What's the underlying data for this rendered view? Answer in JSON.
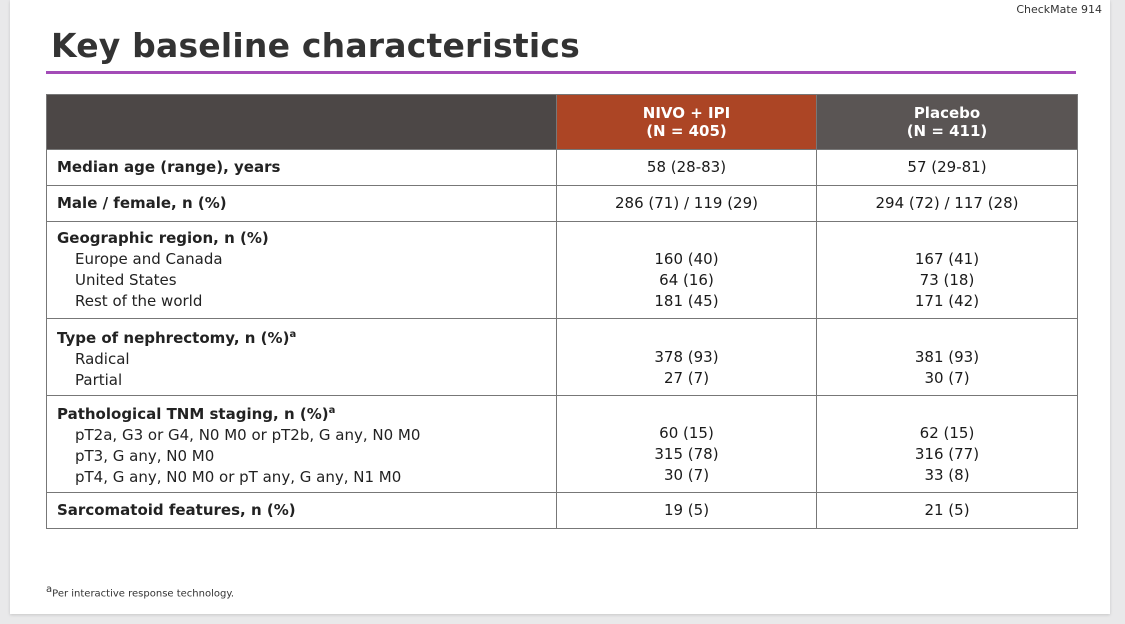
{
  "study_tag": "CheckMate 914",
  "title": "Key baseline characteristics",
  "columns": [
    {
      "line1": "NIVO + IPI",
      "line2": "(N = 405)"
    },
    {
      "line1": "Placebo",
      "line2": "(N = 411)"
    }
  ],
  "rows": [
    {
      "label": "Median age (range), years",
      "nivo": "58 (28-83)",
      "placebo": "57 (29-81)"
    },
    {
      "label": "Male / female, n (%)",
      "nivo": "286 (71) / 119 (29)",
      "placebo": "294 (72) / 117 (28)"
    },
    {
      "label": "Geographic region, n (%)",
      "sub": [
        {
          "label": "Europe and Canada",
          "nivo": "160 (40)",
          "placebo": "167 (41)"
        },
        {
          "label": "United States",
          "nivo": "64 (16)",
          "placebo": "73 (18)"
        },
        {
          "label": "Rest of the world",
          "nivo": "181 (45)",
          "placebo": "171 (42)"
        }
      ]
    },
    {
      "label": "Type of nephrectomy, n (%)",
      "sup": "a",
      "sub": [
        {
          "label": "Radical",
          "nivo": "378 (93)",
          "placebo": "381 (93)"
        },
        {
          "label": "Partial",
          "nivo": "27 (7)",
          "placebo": "30 (7)"
        }
      ]
    },
    {
      "label": "Pathological TNM staging, n (%)",
      "sup": "a",
      "sub": [
        {
          "label": "pT2a, G3 or G4, N0 M0 or pT2b, G any, N0 M0",
          "nivo": "60 (15)",
          "placebo": "62 (15)"
        },
        {
          "label": "pT3, G any, N0 M0",
          "nivo": "315 (78)",
          "placebo": "316 (77)"
        },
        {
          "label": "pT4, G any, N0 M0 or pT any, G any, N1 M0",
          "nivo": "30 (7)",
          "placebo": "33 (8)"
        }
      ]
    },
    {
      "label": "Sarcomatoid features, n (%)",
      "nivo": "19 (5)",
      "placebo": "21 (5)"
    }
  ],
  "footnote": {
    "sup": "a",
    "text": "Per interactive response technology."
  },
  "colors": {
    "accent_rule": "#a34bb7",
    "nivo_header": "#ac4525",
    "placebo_header": "#5a5554",
    "header_blank": "#4c4746"
  }
}
